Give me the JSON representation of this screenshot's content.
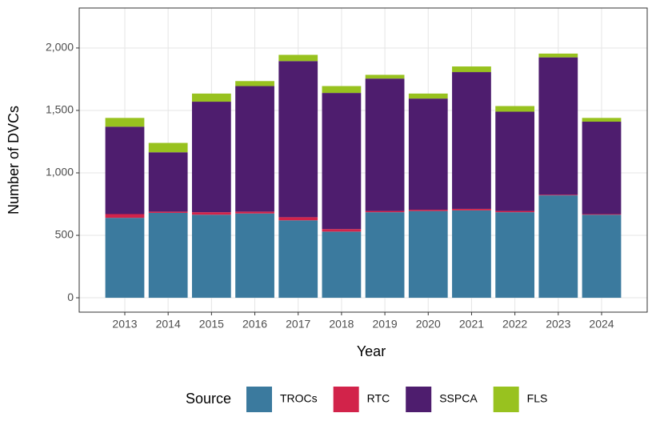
{
  "chart_data": {
    "type": "stacked_bar",
    "x_label": "Year",
    "y_label": "Number of DVCs",
    "legend_title": "Source",
    "categories": [
      "2013",
      "2014",
      "2015",
      "2016",
      "2017",
      "2018",
      "2019",
      "2020",
      "2021",
      "2022",
      "2023",
      "2024"
    ],
    "series": [
      {
        "name": "TROCs",
        "color": "#3b7a9e",
        "values": [
          640,
          680,
          665,
          675,
          620,
          530,
          685,
          695,
          700,
          685,
          820,
          665
        ]
      },
      {
        "name": "RTC",
        "color": "#d2234a",
        "values": [
          30,
          10,
          20,
          15,
          25,
          20,
          10,
          10,
          12,
          10,
          5,
          5
        ]
      },
      {
        "name": "SSPCA",
        "color": "#4e1d6e",
        "values": [
          700,
          475,
          885,
          1005,
          1250,
          1090,
          1060,
          890,
          1095,
          795,
          1100,
          740
        ]
      },
      {
        "name": "FLS",
        "color": "#98c21f",
        "values": [
          70,
          75,
          65,
          40,
          50,
          55,
          30,
          40,
          45,
          45,
          30,
          30
        ]
      }
    ],
    "ylim": [
      -115,
      2320
    ],
    "yticks": [
      0,
      500,
      {
        "value": 1000,
        "label": "1,000"
      },
      {
        "value": 1500,
        "label": "1,500"
      },
      {
        "value": 2000,
        "label": "2,000"
      }
    ],
    "grid": true,
    "legend_position": "bottom"
  }
}
